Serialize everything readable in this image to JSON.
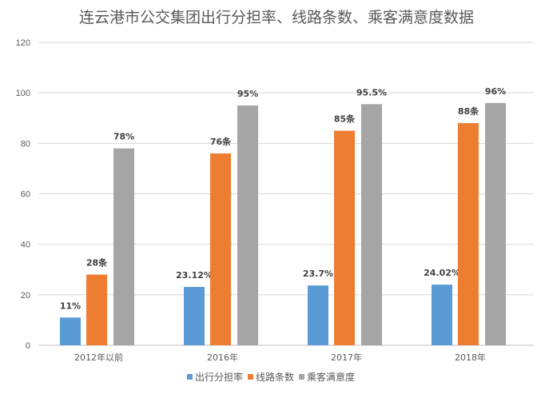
{
  "chart_data": {
    "type": "bar",
    "title": "连云港市公交集团出行分担率、线路条数、乘客满意度数据",
    "categories": [
      "2012年以前",
      "2016年",
      "2017年",
      "2018年"
    ],
    "ylim": [
      0,
      120
    ],
    "yticks": [
      0,
      20,
      40,
      60,
      80,
      100,
      120
    ],
    "grid": true,
    "legend_position": "bottom",
    "series": [
      {
        "name": "出行分担率",
        "color": "#5B9BD5",
        "values": [
          11,
          23.12,
          23.7,
          24.02
        ],
        "labels": [
          "11%",
          "23.12%",
          "23.7%",
          "24.02%"
        ]
      },
      {
        "name": "线路条数",
        "color": "#ED7D31",
        "values": [
          28,
          76,
          85,
          88
        ],
        "labels": [
          "28条",
          "76条",
          "85条",
          "88条"
        ]
      },
      {
        "name": "乘客满意度",
        "color": "#A5A5A5",
        "values": [
          78,
          95,
          95.5,
          96
        ],
        "labels": [
          "78%",
          "95%",
          "95.5%",
          "96%"
        ]
      }
    ]
  }
}
